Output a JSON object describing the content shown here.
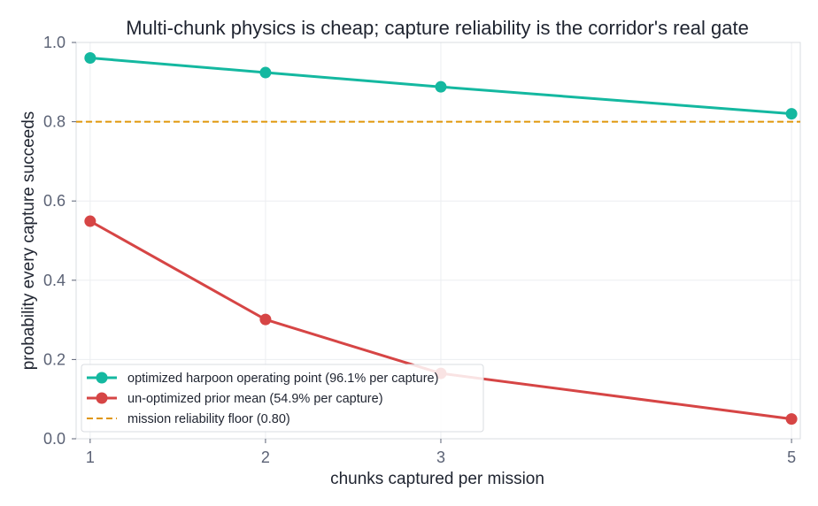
{
  "chart_data": {
    "type": "line",
    "title": "Multi-chunk physics is cheap; capture reliability is the corridor's real gate",
    "xlabel": "chunks captured per mission",
    "ylabel": "probability every capture succeeds",
    "x_ticks": [
      1,
      2,
      3,
      5
    ],
    "y_ticks": [
      0.0,
      0.2,
      0.4,
      0.6,
      0.8,
      1.0
    ],
    "y_tick_labels": [
      "0.0",
      "0.2",
      "0.4",
      "0.6",
      "0.8",
      "1.0"
    ],
    "xlim": [
      0.92,
      5.05
    ],
    "ylim": [
      0.0,
      1.0
    ],
    "grid": true,
    "legend_position": "bottom-left",
    "series": [
      {
        "name": "optimized harpoon operating point (96.1% per capture)",
        "color": "#14b8a0",
        "x": [
          1,
          2,
          3,
          5
        ],
        "values": [
          0.961,
          0.924,
          0.888,
          0.82
        ]
      },
      {
        "name": "un-optimized prior mean (54.9% per capture)",
        "color": "#d64545",
        "x": [
          1,
          2,
          3,
          5
        ],
        "values": [
          0.549,
          0.301,
          0.165,
          0.05
        ]
      }
    ],
    "reference_line": {
      "name": "mission reliability floor (0.80)",
      "value": 0.8,
      "color": "#e0960a",
      "style": "dashed"
    }
  }
}
